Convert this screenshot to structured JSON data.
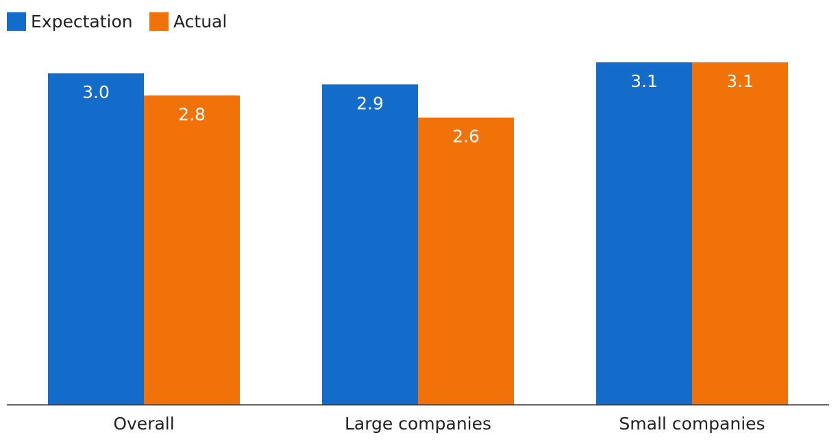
{
  "chart_data": {
    "type": "bar",
    "categories": [
      "Overall",
      "Large companies",
      "Small companies"
    ],
    "series": [
      {
        "name": "Expectation",
        "values": [
          3.0,
          2.9,
          3.1
        ],
        "labels": [
          "3.0",
          "2.9",
          "3.1"
        ],
        "color": "#136cca"
      },
      {
        "name": "Actual",
        "values": [
          2.8,
          2.6,
          3.1
        ],
        "labels": [
          "2.8",
          "2.6",
          "3.1"
        ],
        "color": "#f07208"
      }
    ],
    "title": "",
    "xlabel": "",
    "ylabel": "",
    "ylim": [
      0,
      3.2
    ],
    "grid": false,
    "legend": "top-left"
  }
}
